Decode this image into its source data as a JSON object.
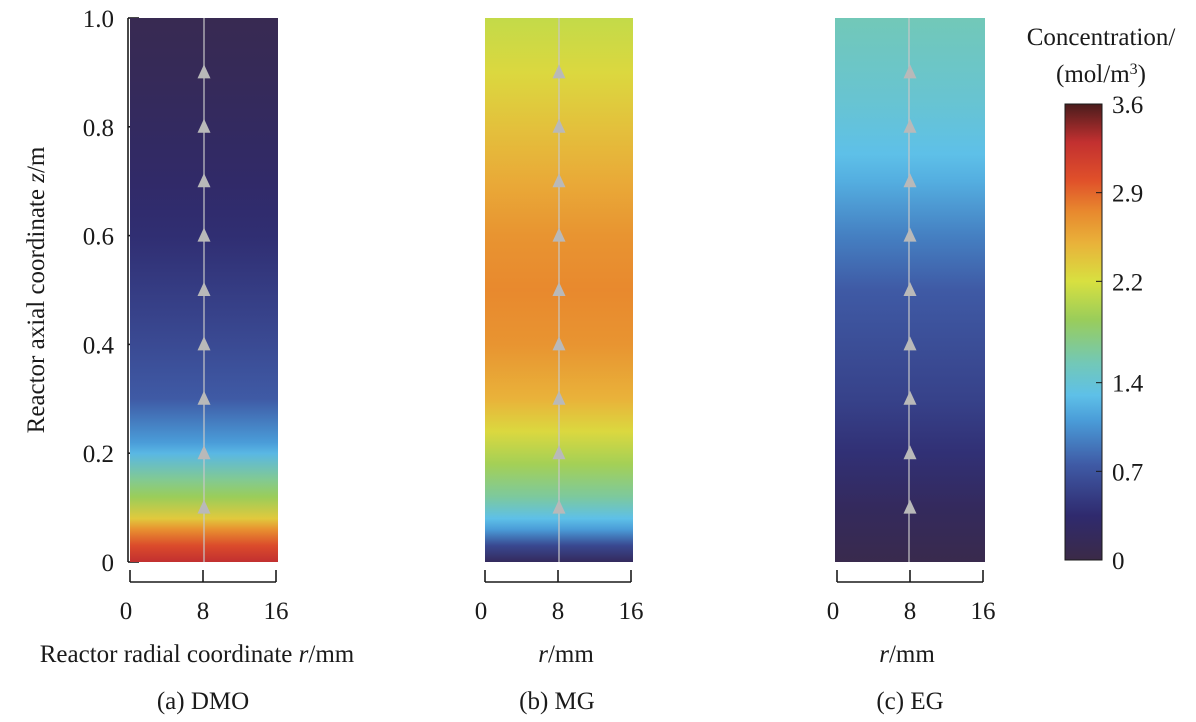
{
  "chart_data": {
    "type": "heatmap",
    "y_axis": {
      "label_main": "Reactor axial coordinate ",
      "label_italic": "z",
      "label_unit": "/m",
      "ylim": [
        0,
        1.0
      ],
      "ticks": [
        0,
        0.2,
        0.4,
        0.6,
        0.8,
        1.0
      ],
      "tick_labels": [
        "0",
        "0.2",
        "0.4",
        "0.6",
        "0.8",
        "1.0"
      ]
    },
    "x_axis": {
      "xlim": [
        0,
        16
      ],
      "ticks": [
        0,
        8,
        16
      ],
      "tick_labels": [
        "0",
        "8",
        "16"
      ]
    },
    "flow_arrow_z": [
      0.1,
      0.2,
      0.3,
      0.4,
      0.5,
      0.6,
      0.7,
      0.8,
      0.9
    ],
    "flow_line_r": 8,
    "colorbar": {
      "title_line1": "Concentration/",
      "title_line2_prefix": "(mol/m",
      "title_line2_sup": "3",
      "title_line2_suffix": ")",
      "range": [
        0,
        3.6
      ],
      "ticks": [
        0,
        0.7,
        1.4,
        2.2,
        2.9,
        3.6
      ],
      "tick_labels": [
        "0",
        "0.7",
        "1.4",
        "2.2",
        "2.9",
        "3.6"
      ],
      "stops": [
        {
          "value": 0.0,
          "color": "#3b2a47"
        },
        {
          "value": 0.35,
          "color": "#2f2a6e"
        },
        {
          "value": 0.75,
          "color": "#3f5aa5"
        },
        {
          "value": 1.1,
          "color": "#4a9cd8"
        },
        {
          "value": 1.3,
          "color": "#5ec0e8"
        },
        {
          "value": 1.55,
          "color": "#72c8b8"
        },
        {
          "value": 1.9,
          "color": "#9acd5a"
        },
        {
          "value": 2.2,
          "color": "#d8e040"
        },
        {
          "value": 2.5,
          "color": "#e9b23a"
        },
        {
          "value": 2.75,
          "color": "#e8892e"
        },
        {
          "value": 3.0,
          "color": "#e0502a"
        },
        {
          "value": 3.3,
          "color": "#c23030"
        },
        {
          "value": 3.6,
          "color": "#4a1c1c"
        }
      ]
    },
    "panels": [
      {
        "id": "DMO",
        "caption": "(a) DMO",
        "xlabel_main": "Reactor radial coordinate ",
        "xlabel_italic": "r",
        "xlabel_unit": "/mm",
        "profile": [
          {
            "z": 0.0,
            "c": 3.3
          },
          {
            "z": 0.03,
            "c": 3.05
          },
          {
            "z": 0.06,
            "c": 2.7
          },
          {
            "z": 0.08,
            "c": 2.35
          },
          {
            "z": 0.12,
            "c": 1.9
          },
          {
            "z": 0.15,
            "c": 1.7
          },
          {
            "z": 0.2,
            "c": 1.25
          },
          {
            "z": 0.22,
            "c": 1.1
          },
          {
            "z": 0.3,
            "c": 0.75
          },
          {
            "z": 0.4,
            "c": 0.62
          },
          {
            "z": 0.5,
            "c": 0.5
          },
          {
            "z": 0.6,
            "c": 0.38
          },
          {
            "z": 0.7,
            "c": 0.3
          },
          {
            "z": 0.8,
            "c": 0.22
          },
          {
            "z": 0.9,
            "c": 0.15
          },
          {
            "z": 1.0,
            "c": 0.1
          }
        ]
      },
      {
        "id": "MG",
        "caption": "(b) MG",
        "xlabel_main": "",
        "xlabel_italic": "r",
        "xlabel_unit": "/mm",
        "profile": [
          {
            "z": 0.0,
            "c": 0.2
          },
          {
            "z": 0.03,
            "c": 0.6
          },
          {
            "z": 0.06,
            "c": 1.1
          },
          {
            "z": 0.08,
            "c": 1.3
          },
          {
            "z": 0.12,
            "c": 1.65
          },
          {
            "z": 0.18,
            "c": 1.95
          },
          {
            "z": 0.24,
            "c": 2.25
          },
          {
            "z": 0.3,
            "c": 2.5
          },
          {
            "z": 0.4,
            "c": 2.68
          },
          {
            "z": 0.5,
            "c": 2.75
          },
          {
            "z": 0.6,
            "c": 2.68
          },
          {
            "z": 0.7,
            "c": 2.55
          },
          {
            "z": 0.8,
            "c": 2.4
          },
          {
            "z": 0.9,
            "c": 2.25
          },
          {
            "z": 1.0,
            "c": 2.1
          }
        ]
      },
      {
        "id": "EG",
        "caption": "(c) EG",
        "xlabel_main": "",
        "xlabel_italic": "r",
        "xlabel_unit": "/mm",
        "profile": [
          {
            "z": 0.0,
            "c": 0.05
          },
          {
            "z": 0.1,
            "c": 0.2
          },
          {
            "z": 0.2,
            "c": 0.4
          },
          {
            "z": 0.3,
            "c": 0.55
          },
          {
            "z": 0.4,
            "c": 0.65
          },
          {
            "z": 0.5,
            "c": 0.75
          },
          {
            "z": 0.6,
            "c": 0.95
          },
          {
            "z": 0.7,
            "c": 1.2
          },
          {
            "z": 0.75,
            "c": 1.3
          },
          {
            "z": 0.85,
            "c": 1.42
          },
          {
            "z": 1.0,
            "c": 1.55
          }
        ]
      }
    ]
  }
}
